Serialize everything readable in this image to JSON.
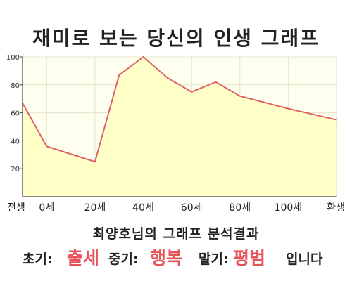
{
  "title": "재미로 보는 당신의 인생 그래프",
  "chart_data": {
    "type": "area",
    "x_categories": [
      "전생",
      "0세",
      "20세",
      "40세",
      "60세",
      "80세",
      "100세",
      "환생"
    ],
    "points": [
      {
        "x": -10,
        "y": 67
      },
      {
        "x": 0,
        "y": 36
      },
      {
        "x": 20,
        "y": 25
      },
      {
        "x": 30,
        "y": 87
      },
      {
        "x": 40,
        "y": 100
      },
      {
        "x": 50,
        "y": 85
      },
      {
        "x": 60,
        "y": 75
      },
      {
        "x": 70,
        "y": 82
      },
      {
        "x": 80,
        "y": 72
      },
      {
        "x": 100,
        "y": 63
      },
      {
        "x": 120,
        "y": 55
      }
    ],
    "y_ticks": [
      20,
      40,
      60,
      80,
      100
    ],
    "ylim": [
      0,
      100
    ],
    "grid": true,
    "line_color": "#e0606a",
    "fill_color": "#ffffc8",
    "plot_background": "#fffff0"
  },
  "result": {
    "heading": "최양호님의 그래프 분석결과",
    "early_label": "초기:",
    "early_value": "출세",
    "middle_label": "중기:",
    "middle_value": "행복",
    "late_label": "말기:",
    "late_value": "평범",
    "closing": "입니다"
  }
}
